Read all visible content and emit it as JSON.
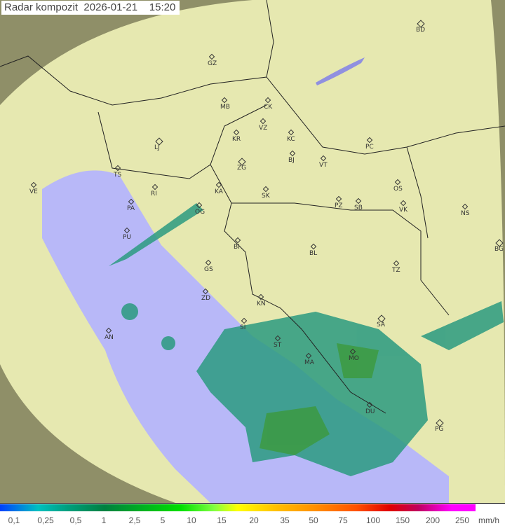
{
  "title": "Radar kompozit  2026-01-21    15:20",
  "colors": {
    "sea": "#b8b8f8",
    "land": "#e6e8b0",
    "outside": "#8a8a60",
    "rain_low": "#2a9ad0",
    "rain_mid": "#2a9a70",
    "rain_high": "#40a040"
  },
  "cities": [
    "BD",
    "GZ",
    "MB",
    "CK",
    "VZ",
    "KR",
    "KC",
    "PC",
    "LJ",
    "ZG",
    "BJ",
    "VT",
    "TS",
    "VE",
    "RI",
    "KA",
    "SK",
    "OS",
    "PA",
    "OG",
    "PZ",
    "SB",
    "VK",
    "NS",
    "PU",
    "BI",
    "BL",
    "BG",
    "GS",
    "TZ",
    "ZD",
    "KN",
    "SA",
    "SI",
    "AN",
    "ST",
    "MO",
    "MA",
    "DU",
    "PG"
  ],
  "legend": {
    "labels": [
      "0,1",
      "0,25",
      "0,5",
      "1",
      "2,5",
      "5",
      "10",
      "15",
      "20",
      "35",
      "50",
      "75",
      "100",
      "150",
      "200",
      "250"
    ],
    "unit": "mm/h"
  }
}
